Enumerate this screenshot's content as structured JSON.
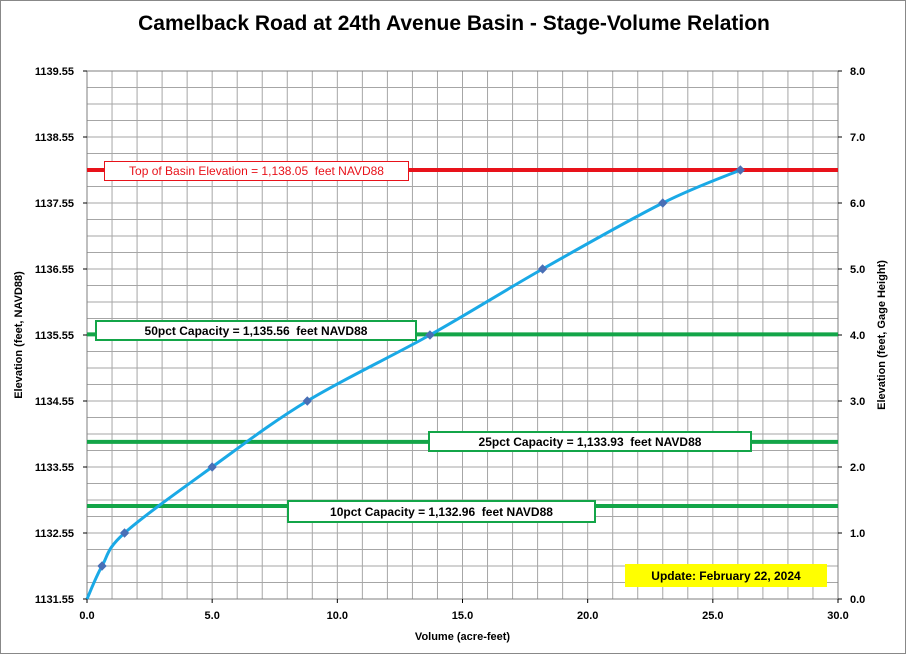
{
  "title": "Camelback Road at 24th Avenue Basin - Stage-Volume Relation",
  "update_text": "Update: February 22, 2024",
  "colors": {
    "curve": "#1aa9e6",
    "marker": "#4a6fb5",
    "top_line": "#e8121a",
    "capacity_line": "#13a548",
    "grid": "#a6a6a6",
    "update_bg": "#ffff00"
  },
  "reference_lines": [
    {
      "label": "Top of Basin Elevation = 1,138.05  feet NAVD88",
      "elevation": 1138.05,
      "kind": "top"
    },
    {
      "label": "50pct Capacity = 1,135.56  feet NAVD88",
      "elevation": 1135.56,
      "kind": "capacity"
    },
    {
      "label": "25pct Capacity = 1,133.93  feet NAVD88",
      "elevation": 1133.93,
      "kind": "capacity"
    },
    {
      "label": "10pct Capacity = 1,132.96  feet NAVD88",
      "elevation": 1132.96,
      "kind": "capacity"
    }
  ],
  "chart_data": {
    "type": "line",
    "xlabel": "Volume (acre-feet)",
    "ylabel": "Elevation  (feet, NAVD88)",
    "y2label": "Elevation  (feet, Gage  Height)",
    "xlim": [
      0,
      30
    ],
    "ylim": [
      1131.55,
      1139.55
    ],
    "y2lim": [
      0,
      8
    ],
    "x_ticks": [
      "0.0",
      "5.0",
      "10.0",
      "15.0",
      "20.0",
      "25.0",
      "30.0"
    ],
    "y_ticks": [
      "1131.55",
      "1132.55",
      "1133.55",
      "1134.55",
      "1135.55",
      "1136.55",
      "1137.55",
      "1138.55",
      "1139.55"
    ],
    "y2_ticks": [
      "0.0",
      "1.0",
      "2.0",
      "3.0",
      "4.0",
      "5.0",
      "6.0",
      "7.0",
      "8.0"
    ],
    "grid": true,
    "series": [
      {
        "points": [
          [
            0.0,
            1131.55
          ],
          [
            0.6,
            1132.05
          ],
          [
            1.5,
            1132.55
          ],
          [
            5.0,
            1133.55
          ],
          [
            8.8,
            1134.55
          ],
          [
            13.7,
            1135.55
          ],
          [
            18.2,
            1136.55
          ],
          [
            23.0,
            1137.55
          ],
          [
            26.1,
            1138.05
          ]
        ]
      }
    ]
  }
}
